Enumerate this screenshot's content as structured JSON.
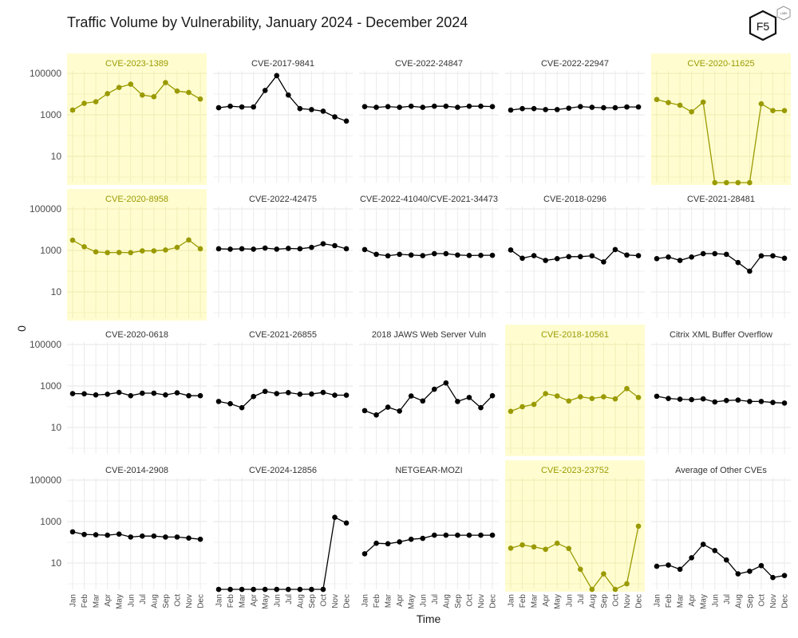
{
  "title": "Traffic Volume by Vulnerability, January 2024 - December 2024",
  "logo": {
    "main": "F5",
    "badge": "LABS"
  },
  "colors": {
    "highlight_bg": "#fffdd0",
    "highlight_line": "#9a9a00",
    "highlight_text": "#9a9a00",
    "normal_line": "#000000",
    "normal_text": "#333333",
    "grid": "#ebebeb",
    "grid_highlight": "#f2edb8"
  },
  "chart_data": {
    "type": "line",
    "title": "Traffic Volume by Vulnerability, January 2024 - December 2024",
    "xlabel": "Time",
    "ylabel": "0",
    "yscale": "log10",
    "ylim": [
      0.5,
      300000
    ],
    "y_ticks": [
      10,
      1000,
      100000
    ],
    "y_tick_labels": [
      "10",
      "1000",
      "100000"
    ],
    "grid": true,
    "legend": "none",
    "x": [
      "Jan",
      "Feb",
      "Mar",
      "Apr",
      "May",
      "Jun",
      "Jul",
      "Aug",
      "Sep",
      "Oct",
      "Nov",
      "Dec"
    ],
    "series": [
      {
        "name": "CVE-2023-1389",
        "highlight": true,
        "values": [
          1700,
          3600,
          4300,
          10500,
          21000,
          30000,
          9000,
          7500,
          36000,
          14000,
          12000,
          5800
        ]
      },
      {
        "name": "CVE-2017-9841",
        "highlight": false,
        "values": [
          2200,
          2600,
          2400,
          2400,
          15000,
          78000,
          9000,
          2000,
          1800,
          1500,
          800,
          500
        ]
      },
      {
        "name": "CVE-2022-24847",
        "highlight": false,
        "values": [
          2500,
          2300,
          2500,
          2300,
          2600,
          2300,
          2600,
          2600,
          2300,
          2600,
          2600,
          2500
        ]
      },
      {
        "name": "CVE-2022-22947",
        "highlight": false,
        "values": [
          1700,
          2000,
          2000,
          1800,
          1800,
          2100,
          2500,
          2300,
          2200,
          2200,
          2400,
          2400
        ]
      },
      {
        "name": "CVE-2020-11625",
        "highlight": true,
        "values": [
          5500,
          3900,
          2900,
          1400,
          4100,
          0,
          0,
          0,
          0,
          3400,
          1600,
          1600
        ]
      },
      {
        "name": "CVE-2020-8958",
        "highlight": true,
        "values": [
          3100,
          1500,
          850,
          780,
          800,
          780,
          950,
          950,
          1050,
          1400,
          3200,
          1200
        ]
      },
      {
        "name": "CVE-2022-42475",
        "highlight": false,
        "values": [
          1200,
          1150,
          1200,
          1150,
          1300,
          1150,
          1250,
          1200,
          1400,
          2100,
          1700,
          1200
        ]
      },
      {
        "name": "CVE-2022-41040/CVE-2021-34473",
        "highlight": false,
        "values": [
          1100,
          650,
          550,
          650,
          600,
          560,
          700,
          700,
          600,
          570,
          580,
          580
        ]
      },
      {
        "name": "CVE-2018-0296",
        "highlight": false,
        "values": [
          1050,
          420,
          560,
          330,
          400,
          500,
          500,
          550,
          280,
          1100,
          600,
          560
        ]
      },
      {
        "name": "CVE-2021-28481",
        "highlight": false,
        "values": [
          400,
          480,
          330,
          480,
          700,
          700,
          650,
          260,
          100,
          550,
          550,
          420
        ]
      },
      {
        "name": "CVE-2020-0618",
        "highlight": false,
        "values": [
          430,
          420,
          370,
          400,
          490,
          340,
          450,
          450,
          370,
          470,
          340,
          340
        ]
      },
      {
        "name": "CVE-2021-26855",
        "highlight": false,
        "values": [
          180,
          140,
          90,
          310,
          550,
          430,
          480,
          400,
          410,
          490,
          360,
          360
        ]
      },
      {
        "name": "2018 JAWS Web Server Vuln",
        "highlight": false,
        "values": [
          65,
          40,
          95,
          62,
          330,
          190,
          700,
          1400,
          180,
          280,
          90,
          340
        ]
      },
      {
        "name": "CVE-2018-10561",
        "highlight": true,
        "values": [
          60,
          100,
          130,
          430,
          330,
          190,
          300,
          250,
          300,
          240,
          750,
          280
        ]
      },
      {
        "name": "Citrix XML Buffer Overflow",
        "highlight": false,
        "values": [
          320,
          250,
          230,
          220,
          240,
          170,
          200,
          210,
          180,
          180,
          160,
          150
        ]
      },
      {
        "name": "CVE-2014-2908",
        "highlight": false,
        "values": [
          320,
          240,
          230,
          220,
          250,
          180,
          200,
          200,
          180,
          180,
          160,
          140
        ]
      },
      {
        "name": "CVE-2024-12856",
        "highlight": false,
        "values": [
          0,
          0,
          0,
          0,
          0,
          0,
          0,
          0,
          0,
          0,
          1600,
          850
        ]
      },
      {
        "name": "NETGEAR-MOZI",
        "highlight": false,
        "values": [
          28,
          90,
          85,
          105,
          140,
          155,
          220,
          220,
          220,
          220,
          220,
          220
        ]
      },
      {
        "name": "CVE-2023-23752",
        "highlight": true,
        "values": [
          52,
          75,
          60,
          46,
          90,
          50,
          5,
          0,
          3,
          0,
          1,
          600
        ]
      },
      {
        "name": "Average of Other CVEs",
        "highlight": false,
        "values": [
          7,
          8,
          5,
          18,
          80,
          40,
          14,
          3,
          4,
          7.5,
          2,
          2.5
        ]
      }
    ]
  }
}
